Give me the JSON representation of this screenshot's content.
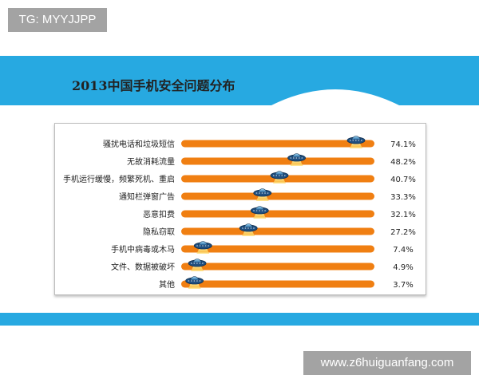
{
  "watermarks": {
    "top_left": "TG: MYYJJPP",
    "bottom_right": "www.z6huiguanfang.com"
  },
  "colors": {
    "accent_blue": "#27a9e1",
    "bar_orange": "#f07f12"
  },
  "chart_data": {
    "type": "bar",
    "orientation": "horizontal",
    "title": "2013中国手机安全问题分布",
    "categories": [
      "骚扰电话和垃圾短信",
      "无故消耗流量",
      "手机运行缓慢，频繁死机、重启",
      "通知栏弹窗广告",
      "恶意扣费",
      "隐私窃取",
      "手机中病毒或木马",
      "文件、数据被破坏",
      "其他"
    ],
    "values": [
      74.1,
      48.2,
      40.7,
      33.3,
      32.1,
      27.2,
      7.4,
      4.9,
      3.7
    ],
    "value_labels": [
      "74.1%",
      "48.2%",
      "40.7%",
      "33.3%",
      "32.1%",
      "27.2%",
      "7.4%",
      "4.9%",
      "3.7%"
    ],
    "xlim": [
      0,
      80
    ],
    "grid": false,
    "legend": "none",
    "marker_icon": "ufo-slider-icon"
  }
}
